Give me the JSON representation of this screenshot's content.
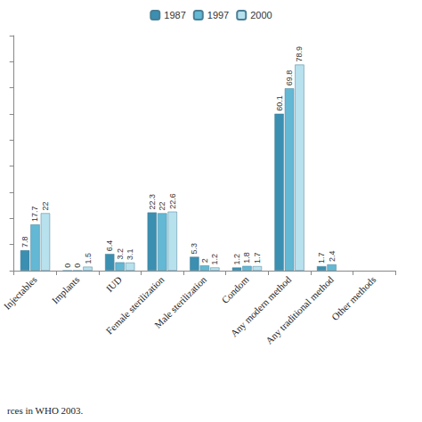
{
  "chart_data": {
    "type": "bar",
    "categories": [
      "Injectables",
      "Implants",
      "IUD",
      "Female sterilization",
      "Male sterilization",
      "Condom",
      "Any modern method",
      "Any traditional method",
      "Other methods"
    ],
    "series": [
      {
        "name": "1987",
        "color": "#3b8fb1",
        "values": [
          7.8,
          0,
          6.4,
          22.3,
          5.3,
          1.2,
          60.1,
          1.7,
          null
        ]
      },
      {
        "name": "1997",
        "color": "#63b8d4",
        "values": [
          17.7,
          0,
          3.2,
          22,
          2,
          1.8,
          69.8,
          2.4,
          null
        ],
        "value_labels": [
          "17.7",
          "0",
          "3.2",
          "22",
          "2",
          "1.8",
          "69.8",
          "2.4",
          null
        ]
      },
      {
        "name": "2000",
        "color": "#b8e1ee",
        "values": [
          22,
          1.5,
          3.1,
          22.6,
          1.2,
          1.7,
          78.9,
          null,
          null
        ]
      }
    ],
    "value_labels_1987": null,
    "ylim": [
      0,
      90
    ],
    "yticks": [
      0,
      10,
      20,
      30,
      40,
      50,
      60,
      70,
      80,
      90
    ],
    "grid": false,
    "legend": "top",
    "data_labels": true,
    "tick_labels": "x",
    "note": "rces in WHO 2003."
  }
}
